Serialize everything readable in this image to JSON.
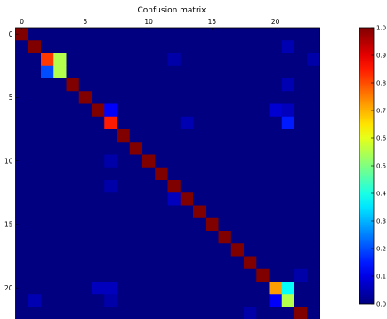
{
  "chart_data": {
    "type": "heatmap",
    "title": "Confusion matrix",
    "xlabel": "",
    "ylabel": "",
    "rows": 24,
    "cols": 24,
    "x_ticks": [
      0,
      5,
      10,
      15,
      20
    ],
    "y_ticks": [
      0,
      5,
      10,
      15,
      20
    ],
    "colormap": "jet",
    "colorbar": {
      "range": [
        0.0,
        1.0
      ],
      "ticks": [
        "0.0",
        "0.1",
        "0.2",
        "0.3",
        "0.4",
        "0.5",
        "0.6",
        "0.7",
        "0.8",
        "0.9",
        "1.0"
      ]
    },
    "grid": false,
    "default_value": 0.0,
    "diagonal_default": 1.0,
    "cells": [
      {
        "row": 1,
        "col": 21,
        "value": 0.05
      },
      {
        "row": 2,
        "col": 2,
        "value": 0.82
      },
      {
        "row": 2,
        "col": 3,
        "value": 0.55
      },
      {
        "row": 2,
        "col": 12,
        "value": 0.04
      },
      {
        "row": 2,
        "col": 23,
        "value": 0.04
      },
      {
        "row": 3,
        "col": 2,
        "value": 0.2
      },
      {
        "row": 3,
        "col": 3,
        "value": 0.55
      },
      {
        "row": 4,
        "col": 21,
        "value": 0.05
      },
      {
        "row": 6,
        "col": 7,
        "value": 0.12
      },
      {
        "row": 6,
        "col": 20,
        "value": 0.08
      },
      {
        "row": 6,
        "col": 21,
        "value": 0.06
      },
      {
        "row": 7,
        "col": 7,
        "value": 0.85
      },
      {
        "row": 7,
        "col": 13,
        "value": 0.05
      },
      {
        "row": 7,
        "col": 21,
        "value": 0.15
      },
      {
        "row": 10,
        "col": 7,
        "value": 0.04
      },
      {
        "row": 12,
        "col": 7,
        "value": 0.04
      },
      {
        "row": 13,
        "col": 12,
        "value": 0.06
      },
      {
        "row": 19,
        "col": 22,
        "value": 0.04
      },
      {
        "row": 20,
        "col": 20,
        "value": 0.72
      },
      {
        "row": 20,
        "col": 21,
        "value": 0.38
      },
      {
        "row": 20,
        "col": 6,
        "value": 0.06
      },
      {
        "row": 20,
        "col": 7,
        "value": 0.06
      },
      {
        "row": 21,
        "col": 1,
        "value": 0.05
      },
      {
        "row": 21,
        "col": 7,
        "value": 0.04
      },
      {
        "row": 21,
        "col": 20,
        "value": 0.12
      },
      {
        "row": 21,
        "col": 21,
        "value": 0.55
      },
      {
        "row": 22,
        "col": 18,
        "value": 0.04
      }
    ]
  }
}
